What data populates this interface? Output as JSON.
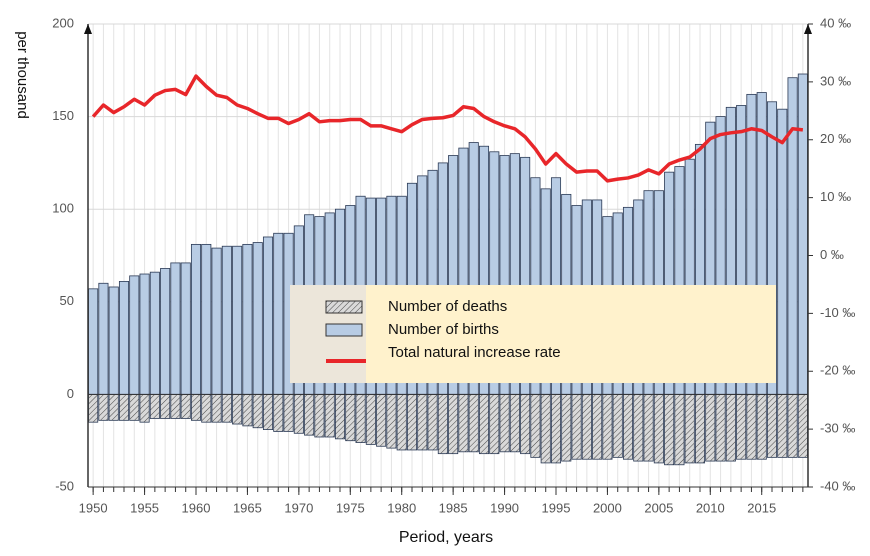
{
  "chart_data": {
    "type": "bar",
    "y_label": "per thousand",
    "x_label": "Period, years",
    "x": [
      1950,
      1951,
      1952,
      1953,
      1954,
      1955,
      1956,
      1957,
      1958,
      1959,
      1960,
      1961,
      1962,
      1963,
      1964,
      1965,
      1966,
      1967,
      1968,
      1969,
      1970,
      1971,
      1972,
      1973,
      1974,
      1975,
      1976,
      1977,
      1978,
      1979,
      1980,
      1981,
      1982,
      1983,
      1984,
      1985,
      1986,
      1987,
      1988,
      1989,
      1990,
      1991,
      1992,
      1993,
      1994,
      1995,
      1996,
      1997,
      1998,
      1999,
      2000,
      2001,
      2002,
      2003,
      2004,
      2005,
      2006,
      2007,
      2008,
      2009,
      2010,
      2011,
      2012,
      2013,
      2014,
      2015,
      2016,
      2017,
      2018,
      2019
    ],
    "xlim": [
      1949.5,
      2019.5
    ],
    "xticks": [
      1950,
      1955,
      1960,
      1965,
      1970,
      1975,
      1980,
      1985,
      1990,
      1995,
      2000,
      2005,
      2010,
      2015
    ],
    "ylim": [
      -50,
      200
    ],
    "yticks": [
      -50,
      0,
      50,
      100,
      150,
      200
    ],
    "y2lim": [
      -40,
      40
    ],
    "y2ticks": [
      {
        "value": -40,
        "label": "-40 ‰"
      },
      {
        "value": -30,
        "label": "-30 ‰"
      },
      {
        "value": -20,
        "label": "-20 ‰"
      },
      {
        "value": -10,
        "label": "-10 ‰"
      },
      {
        "value": 0,
        "label": "0 ‰"
      },
      {
        "value": 10,
        "label": "10 ‰"
      },
      {
        "value": 20,
        "label": "20 ‰"
      },
      {
        "value": 30,
        "label": "30 ‰"
      },
      {
        "value": 40,
        "label": "40 ‰"
      }
    ],
    "grid": true,
    "series": [
      {
        "name": "Number of deaths",
        "type": "bar",
        "color": "#d9d9d9",
        "values": [
          -15,
          -14,
          -14,
          -14,
          -14,
          -15,
          -13,
          -13,
          -13,
          -13,
          -14,
          -15,
          -15,
          -15,
          -16,
          -17,
          -18,
          -19,
          -20,
          -20,
          -21,
          -22,
          -23,
          -23,
          -24,
          -25,
          -26,
          -27,
          -28,
          -29,
          -30,
          -30,
          -30,
          -30,
          -32,
          -32,
          -31,
          -31,
          -32,
          -32,
          -31,
          -31,
          -32,
          -34,
          -37,
          -37,
          -36,
          -35,
          -35,
          -35,
          -35,
          -34,
          -35,
          -36,
          -36,
          -37,
          -38,
          -38,
          -37,
          -37,
          -36,
          -36,
          -36,
          -35,
          -35,
          -35,
          -34,
          -34,
          -34,
          -34
        ]
      },
      {
        "name": "Number of births",
        "type": "bar",
        "color": "#b8cce4",
        "values": [
          57,
          60,
          58,
          61,
          64,
          65,
          66,
          68,
          71,
          71,
          81,
          81,
          79,
          80,
          80,
          81,
          82,
          85,
          87,
          87,
          91,
          97,
          96,
          98,
          100,
          102,
          107,
          106,
          106,
          107,
          107,
          114,
          118,
          121,
          125,
          129,
          133,
          136,
          134,
          131,
          129,
          130,
          128,
          117,
          111,
          117,
          108,
          102,
          105,
          105,
          96,
          98,
          101,
          105,
          110,
          110,
          120,
          123,
          127,
          135,
          147,
          150,
          155,
          156,
          162,
          163,
          158,
          154,
          171,
          173
        ]
      },
      {
        "name": "Total natural increase rate",
        "type": "line",
        "axis": "y2",
        "color": "#e8262a",
        "values": [
          24,
          26,
          24.7,
          25.7,
          27,
          26,
          27.7,
          28.5,
          28.7,
          27.8,
          31,
          29.2,
          27.7,
          27.3,
          26,
          25.4,
          24.5,
          23.7,
          23.7,
          22.8,
          23.5,
          24.5,
          23.1,
          23.3,
          23.3,
          23.5,
          23.5,
          22.4,
          22.4,
          21.9,
          21.4,
          22.6,
          23.5,
          23.7,
          23.8,
          24.2,
          25.7,
          25.4,
          24,
          23.1,
          22.4,
          21.9,
          20.5,
          18.4,
          15.8,
          17.6,
          15.8,
          14.4,
          14.6,
          14.6,
          12.9,
          13.2,
          13.4,
          13.9,
          14.8,
          14.1,
          15.8,
          16.5,
          17,
          18.4,
          20.2,
          20.9,
          21.2,
          21.4,
          21.9,
          21.6,
          20.5,
          19.5,
          21.9,
          21.7
        ]
      }
    ]
  }
}
